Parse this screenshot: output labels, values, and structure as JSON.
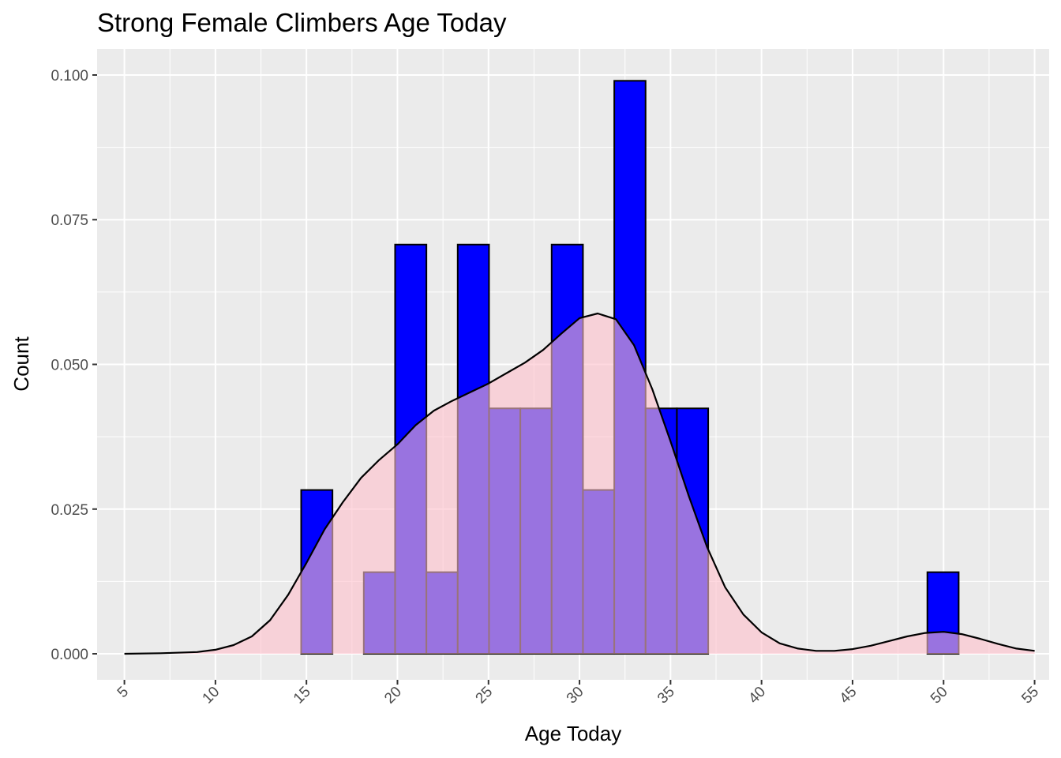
{
  "chart_data": {
    "type": "bar",
    "title": "Strong Female Climbers Age Today",
    "xlabel": "Age Today",
    "ylabel": "Count",
    "xlim": [
      3.5,
      55.8
    ],
    "ylim": [
      -0.0045,
      0.1045
    ],
    "x_ticks": [
      5,
      10,
      15,
      20,
      25,
      30,
      35,
      40,
      45,
      50,
      55
    ],
    "x_tick_labels": [
      "5",
      "10",
      "15",
      "20",
      "25",
      "30",
      "35",
      "40",
      "45",
      "50",
      "55"
    ],
    "y_ticks": [
      0,
      0.025,
      0.05,
      0.075,
      0.1
    ],
    "y_tick_labels": [
      "0.000",
      "0.025",
      "0.050",
      "0.075",
      "0.100"
    ],
    "grid": true,
    "bin_width": 1.72,
    "bins": [
      {
        "x0": 14.71,
        "x1": 16.43,
        "value": 0.0283
      },
      {
        "x0": 18.15,
        "x1": 19.87,
        "value": 0.0141
      },
      {
        "x0": 19.87,
        "x1": 21.59,
        "value": 0.0707
      },
      {
        "x0": 21.59,
        "x1": 23.31,
        "value": 0.0141
      },
      {
        "x0": 23.31,
        "x1": 25.03,
        "value": 0.0707
      },
      {
        "x0": 25.03,
        "x1": 26.75,
        "value": 0.0424
      },
      {
        "x0": 26.75,
        "x1": 28.47,
        "value": 0.0424
      },
      {
        "x0": 28.47,
        "x1": 30.19,
        "value": 0.0707
      },
      {
        "x0": 30.19,
        "x1": 31.91,
        "value": 0.0283
      },
      {
        "x0": 31.91,
        "x1": 33.63,
        "value": 0.099
      },
      {
        "x0": 33.63,
        "x1": 35.35,
        "value": 0.0424
      },
      {
        "x0": 35.35,
        "x1": 37.07,
        "value": 0.0424
      },
      {
        "x0": 49.11,
        "x1": 50.83,
        "value": 0.0141
      }
    ],
    "density": {
      "x": [
        5,
        7,
        9,
        10,
        11,
        12,
        13,
        14,
        15,
        16,
        17,
        18,
        19,
        20,
        21,
        22,
        23,
        24,
        25,
        26,
        27,
        28,
        29,
        30,
        31,
        32,
        33,
        34,
        35,
        36,
        37,
        38,
        39,
        40,
        41,
        42,
        43,
        44,
        45,
        46,
        47,
        48,
        49,
        50,
        51,
        52,
        53,
        54,
        55
      ],
      "y": [
        0,
        0.0001,
        0.0003,
        0.0007,
        0.0015,
        0.003,
        0.0058,
        0.0102,
        0.0157,
        0.0215,
        0.0262,
        0.0304,
        0.0335,
        0.0362,
        0.0395,
        0.042,
        0.0437,
        0.0452,
        0.0467,
        0.0485,
        0.0503,
        0.0525,
        0.0553,
        0.058,
        0.0588,
        0.0578,
        0.0533,
        0.0457,
        0.0367,
        0.0273,
        0.0185,
        0.0115,
        0.0068,
        0.0037,
        0.0018,
        0.0009,
        0.0005,
        0.0005,
        0.0008,
        0.0014,
        0.0022,
        0.003,
        0.0036,
        0.0038,
        0.0034,
        0.0026,
        0.0017,
        0.0009,
        0.0005
      ]
    },
    "colors": {
      "bar_fill": "#0000ff",
      "bar_stroke": "#000000",
      "density_fill": "#ffc0cb",
      "density_fill_opacity": 0.6,
      "density_line": "#000000",
      "panel_background": "#ebebeb",
      "grid_major": "#ffffff"
    }
  }
}
